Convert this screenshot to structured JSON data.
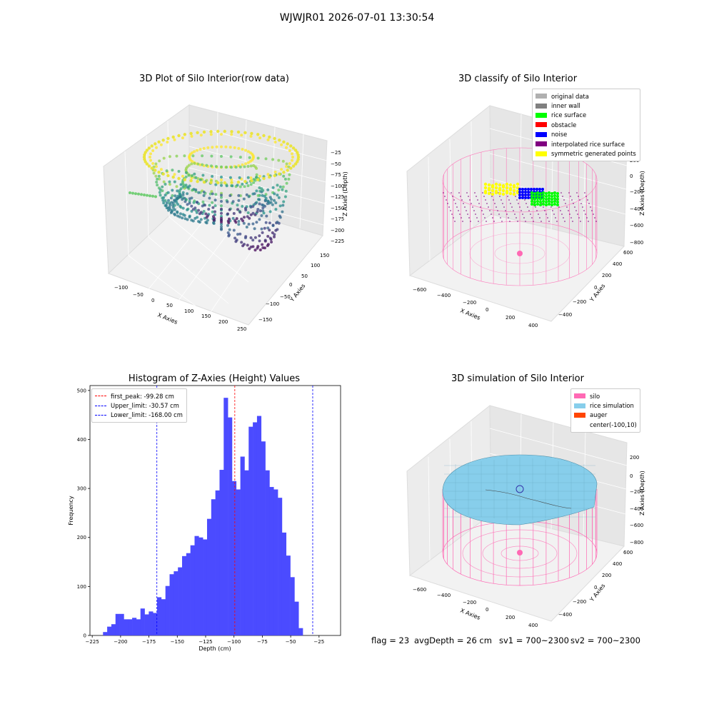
{
  "suptitle": "WJWJR01 2026-07-01 13:30:54",
  "colors": {
    "original": "#b0b0b0",
    "inner_wall": "#808080",
    "rice_surface": "#00ff00",
    "obstacle": "#ff0000",
    "noise": "#0000ff",
    "interpolated": "#800080",
    "symmetric": "#ffff00",
    "silo": "#ff69b4",
    "rice_sim": "#87ceeb",
    "auger": "#ff4500",
    "hist_bar": "#4b4bff"
  },
  "panel_raw": {
    "title": "3D Plot of Silo Interior(row data)",
    "x_label": "X Axies",
    "y_label": "Y Axies",
    "z_label": "Z Axies (Depth)",
    "x_ticks": [
      "−100",
      "−50",
      "0",
      "50",
      "100",
      "150",
      "200",
      "250"
    ],
    "y_ticks": [
      "−150",
      "−100",
      "−50",
      "0",
      "50",
      "100",
      "150"
    ],
    "z_ticks": [
      "−25",
      "−50",
      "−75",
      "−100",
      "−125",
      "−150",
      "−175",
      "−200",
      "−225"
    ]
  },
  "panel_classify": {
    "title": "3D classify of Silo Interior",
    "x_label": "X Axies",
    "y_label": "Y Axies",
    "z_label": "Z Axies (Depth)",
    "x_ticks": [
      "−600",
      "−400",
      "−200",
      "0",
      "200",
      "400"
    ],
    "y_ticks": [
      "−400",
      "−200",
      "0",
      "200",
      "400",
      "600"
    ],
    "z_ticks": [
      "200",
      "0",
      "−200",
      "−400",
      "−600",
      "−800"
    ],
    "legend": [
      {
        "label": "original data",
        "color": "#b0b0b0"
      },
      {
        "label": "inner wall",
        "color": "#808080"
      },
      {
        "label": "rice surface",
        "color": "#00ff00"
      },
      {
        "label": "obstacle",
        "color": "#ff0000"
      },
      {
        "label": "noise",
        "color": "#0000ff"
      },
      {
        "label": "interpolated rice surface",
        "color": "#800080"
      },
      {
        "label": "symmetric generated points",
        "color": "#ffff00"
      }
    ]
  },
  "panel_sim": {
    "title": "3D simulation of Silo Interior",
    "x_label": "X Axies",
    "y_label": "Y Axies",
    "z_label": "Z Axies (Depth)",
    "x_ticks": [
      "−600",
      "−400",
      "−200",
      "0",
      "200",
      "400"
    ],
    "y_ticks": [
      "−400",
      "−200",
      "0",
      "200",
      "400",
      "600"
    ],
    "z_ticks": [
      "200",
      "0",
      "−200",
      "−400",
      "−600",
      "−800"
    ],
    "legend": [
      {
        "label": "silo",
        "color": "#ff69b4"
      },
      {
        "label": "rice simulation",
        "color": "#87ceeb"
      },
      {
        "label": "auger",
        "color": "#ff4500"
      },
      {
        "label": "center(-100,10)",
        "color": "transparent"
      }
    ]
  },
  "chart_data": {
    "type": "bar",
    "title": "Histogram of Z-Axies (Height) Values",
    "xlabel": "Depth (cm)",
    "ylabel": "Frequency",
    "xlim": [
      -227,
      -6
    ],
    "ylim": [
      0,
      510
    ],
    "x_ticks": [
      -225,
      -200,
      -175,
      -150,
      -125,
      -100,
      -75,
      -50,
      -25
    ],
    "x_tick_labels": [
      "−225",
      "−200",
      "−175",
      "−150",
      "−125",
      "−100",
      "−75",
      "−50",
      "−25"
    ],
    "y_ticks": [
      0,
      100,
      200,
      300,
      400,
      500
    ],
    "y_tick_labels": [
      "0",
      "100",
      "200",
      "300",
      "400",
      "500"
    ],
    "bin_start": -215.5,
    "bin_width": 3.67,
    "values": [
      7,
      18,
      23,
      44,
      44,
      33,
      33,
      36,
      33,
      55,
      43,
      49,
      46,
      78,
      74,
      101,
      125,
      131,
      139,
      162,
      168,
      184,
      203,
      200,
      196,
      238,
      278,
      296,
      338,
      485,
      445,
      315,
      298,
      365,
      337,
      426,
      435,
      448,
      396,
      337,
      303,
      298,
      281,
      210,
      163,
      119,
      69,
      15
    ],
    "lines": [
      {
        "label": "first_peak: -99.28 cm",
        "x": -99.28,
        "color": "#ff0000"
      },
      {
        "label": "Upper_limit: -30.57 cm",
        "x": -30.57,
        "color": "#0000ff"
      },
      {
        "label": "Lower_limit: -168.00 cm",
        "x": -168.0,
        "color": "#0000ff"
      }
    ]
  },
  "footer": {
    "flag": "flag = 23",
    "avg_depth": "avgDepth = 26 cm",
    "sv1": "sv1 = 700~2300",
    "sv2": "sv2 = 700~2300"
  }
}
